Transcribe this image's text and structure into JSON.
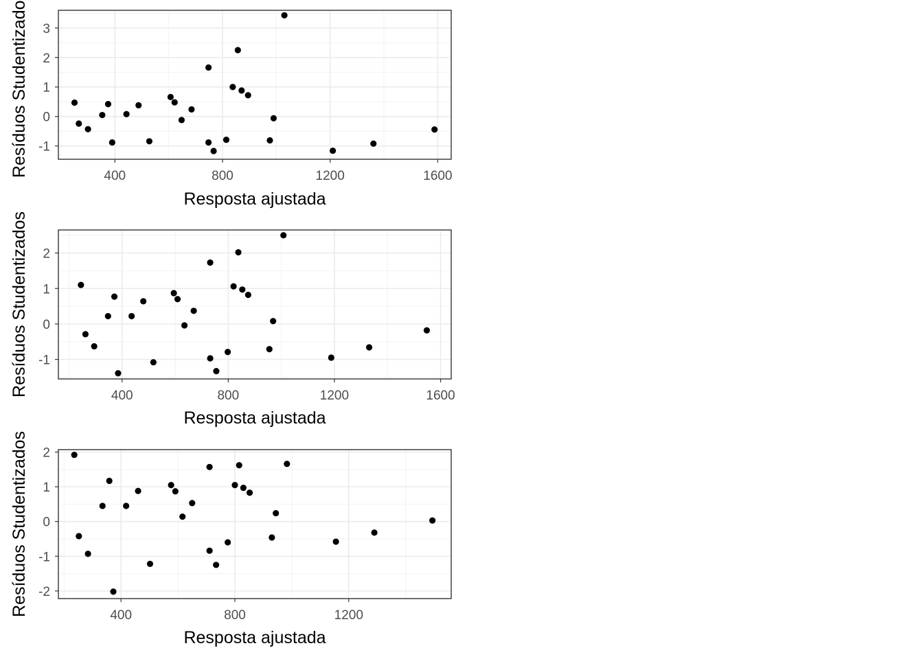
{
  "chart_data": [
    {
      "type": "scatter",
      "title": "",
      "xlabel": "Resposta ajustada",
      "ylabel": "Resíduos Studentizados",
      "xlim": [
        190,
        1650
      ],
      "ylim": [
        -1.45,
        3.6
      ],
      "x_ticks": [
        400,
        800,
        1200,
        1600
      ],
      "y_ticks": [
        -1,
        0,
        1,
        2,
        3
      ],
      "grid": true,
      "color": "#000000",
      "points": [
        {
          "x": 250,
          "y": 0.47
        },
        {
          "x": 266,
          "y": -0.24
        },
        {
          "x": 300,
          "y": -0.43
        },
        {
          "x": 353,
          "y": 0.05
        },
        {
          "x": 375,
          "y": 0.42
        },
        {
          "x": 390,
          "y": -0.88
        },
        {
          "x": 443,
          "y": 0.08
        },
        {
          "x": 488,
          "y": 0.38
        },
        {
          "x": 528,
          "y": -0.84
        },
        {
          "x": 607,
          "y": 0.66
        },
        {
          "x": 622,
          "y": 0.48
        },
        {
          "x": 648,
          "y": -0.12
        },
        {
          "x": 685,
          "y": 0.24
        },
        {
          "x": 748,
          "y": 1.66
        },
        {
          "x": 748,
          "y": -0.88
        },
        {
          "x": 767,
          "y": -1.17
        },
        {
          "x": 814,
          "y": -0.79
        },
        {
          "x": 838,
          "y": 1.0
        },
        {
          "x": 857,
          "y": 2.25
        },
        {
          "x": 871,
          "y": 0.88
        },
        {
          "x": 895,
          "y": 0.72
        },
        {
          "x": 976,
          "y": -0.81
        },
        {
          "x": 990,
          "y": -0.06
        },
        {
          "x": 1030,
          "y": 3.43
        },
        {
          "x": 1210,
          "y": -1.16
        },
        {
          "x": 1361,
          "y": -0.92
        },
        {
          "x": 1588,
          "y": -0.44
        }
      ]
    },
    {
      "type": "scatter",
      "title": "",
      "xlabel": "Resposta ajustada",
      "ylabel": "Resíduos Studentizados",
      "xlim": [
        160,
        1640
      ],
      "ylim": [
        -1.55,
        2.65
      ],
      "x_ticks": [
        400,
        800,
        1200,
        1600
      ],
      "y_ticks": [
        -1,
        0,
        1,
        2
      ],
      "grid": true,
      "color": "#000000",
      "points": [
        {
          "x": 245,
          "y": 1.1
        },
        {
          "x": 262,
          "y": -0.29
        },
        {
          "x": 295,
          "y": -0.63
        },
        {
          "x": 347,
          "y": 0.22
        },
        {
          "x": 371,
          "y": 0.77
        },
        {
          "x": 385,
          "y": -1.39
        },
        {
          "x": 436,
          "y": 0.22
        },
        {
          "x": 480,
          "y": 0.64
        },
        {
          "x": 518,
          "y": -1.08
        },
        {
          "x": 595,
          "y": 0.87
        },
        {
          "x": 609,
          "y": 0.7
        },
        {
          "x": 635,
          "y": -0.04
        },
        {
          "x": 670,
          "y": 0.37
        },
        {
          "x": 732,
          "y": 1.73
        },
        {
          "x": 732,
          "y": -0.97
        },
        {
          "x": 755,
          "y": -1.33
        },
        {
          "x": 798,
          "y": -0.79
        },
        {
          "x": 820,
          "y": 1.06
        },
        {
          "x": 838,
          "y": 2.02
        },
        {
          "x": 853,
          "y": 0.97
        },
        {
          "x": 875,
          "y": 0.82
        },
        {
          "x": 955,
          "y": -0.71
        },
        {
          "x": 969,
          "y": 0.08
        },
        {
          "x": 1008,
          "y": 2.5
        },
        {
          "x": 1188,
          "y": -0.95
        },
        {
          "x": 1331,
          "y": -0.66
        },
        {
          "x": 1548,
          "y": -0.18
        }
      ]
    },
    {
      "type": "scatter",
      "title": "",
      "xlabel": "Resposta ajustada",
      "ylabel": "Resíduos Studentizados",
      "xlim": [
        180,
        1560
      ],
      "ylim": [
        -2.22,
        2.07
      ],
      "x_ticks": [
        400,
        800,
        1200
      ],
      "y_ticks": [
        -2,
        -1,
        0,
        1,
        2
      ],
      "grid": true,
      "color": "#000000",
      "points": [
        {
          "x": 236,
          "y": 1.92
        },
        {
          "x": 252,
          "y": -0.42
        },
        {
          "x": 284,
          "y": -0.93
        },
        {
          "x": 335,
          "y": 0.45
        },
        {
          "x": 359,
          "y": 1.17
        },
        {
          "x": 373,
          "y": -2.02
        },
        {
          "x": 418,
          "y": 0.45
        },
        {
          "x": 460,
          "y": 0.88
        },
        {
          "x": 502,
          "y": -1.22
        },
        {
          "x": 576,
          "y": 1.05
        },
        {
          "x": 591,
          "y": 0.87
        },
        {
          "x": 616,
          "y": 0.14
        },
        {
          "x": 650,
          "y": 0.53
        },
        {
          "x": 711,
          "y": 1.57
        },
        {
          "x": 711,
          "y": -0.84
        },
        {
          "x": 734,
          "y": -1.25
        },
        {
          "x": 775,
          "y": -0.6
        },
        {
          "x": 800,
          "y": 1.05
        },
        {
          "x": 815,
          "y": 1.62
        },
        {
          "x": 830,
          "y": 0.97
        },
        {
          "x": 852,
          "y": 0.83
        },
        {
          "x": 930,
          "y": -0.46
        },
        {
          "x": 944,
          "y": 0.24
        },
        {
          "x": 983,
          "y": 1.66
        },
        {
          "x": 1155,
          "y": -0.58
        },
        {
          "x": 1290,
          "y": -0.32
        },
        {
          "x": 1494,
          "y": 0.03
        }
      ]
    }
  ]
}
